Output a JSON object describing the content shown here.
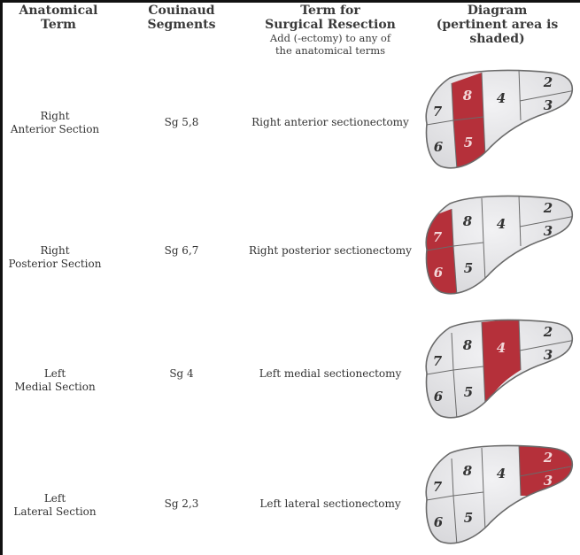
{
  "headers": {
    "anatomical": [
      "Anatomical",
      "Term"
    ],
    "couinaud": [
      "Couinaud",
      "Segments"
    ],
    "surgical": [
      "Term for",
      "Surgical Resection"
    ],
    "surgical_note": [
      "Add (-ectomy) to any of",
      "the anatomical terms"
    ],
    "diagram": [
      "Diagram",
      "(pertinent area is shaded)"
    ]
  },
  "rows": [
    {
      "term": [
        "Right",
        "Anterior Section"
      ],
      "segments": "Sg 5,8",
      "resection": "Right anterior sectionectomy",
      "shaded": [
        "5",
        "8"
      ]
    },
    {
      "term": [
        "Right",
        "Posterior Section"
      ],
      "segments": "Sg 6,7",
      "resection": "Right posterior sectionectomy",
      "shaded": [
        "6",
        "7"
      ]
    },
    {
      "term": [
        "Left",
        "Medial Section"
      ],
      "segments": "Sg 4",
      "resection": "Left medial sectionectomy",
      "shaded": [
        "4"
      ]
    },
    {
      "term": [
        "Left",
        "Lateral Section"
      ],
      "segments": "Sg 2,3",
      "resection": "Left lateral sectionectomy",
      "shaded": [
        "2",
        "3"
      ]
    }
  ],
  "diagram_labels": {
    "s2": "2",
    "s3": "3",
    "s4": "4",
    "s5": "5",
    "s6": "6",
    "s7": "7",
    "s8": "8"
  },
  "colors": {
    "shade": "#b5303a",
    "liver": "#d9d9dc",
    "outline": "#6a6a6a",
    "label": "#333333",
    "label_on_shade": "#f3d7d9"
  }
}
